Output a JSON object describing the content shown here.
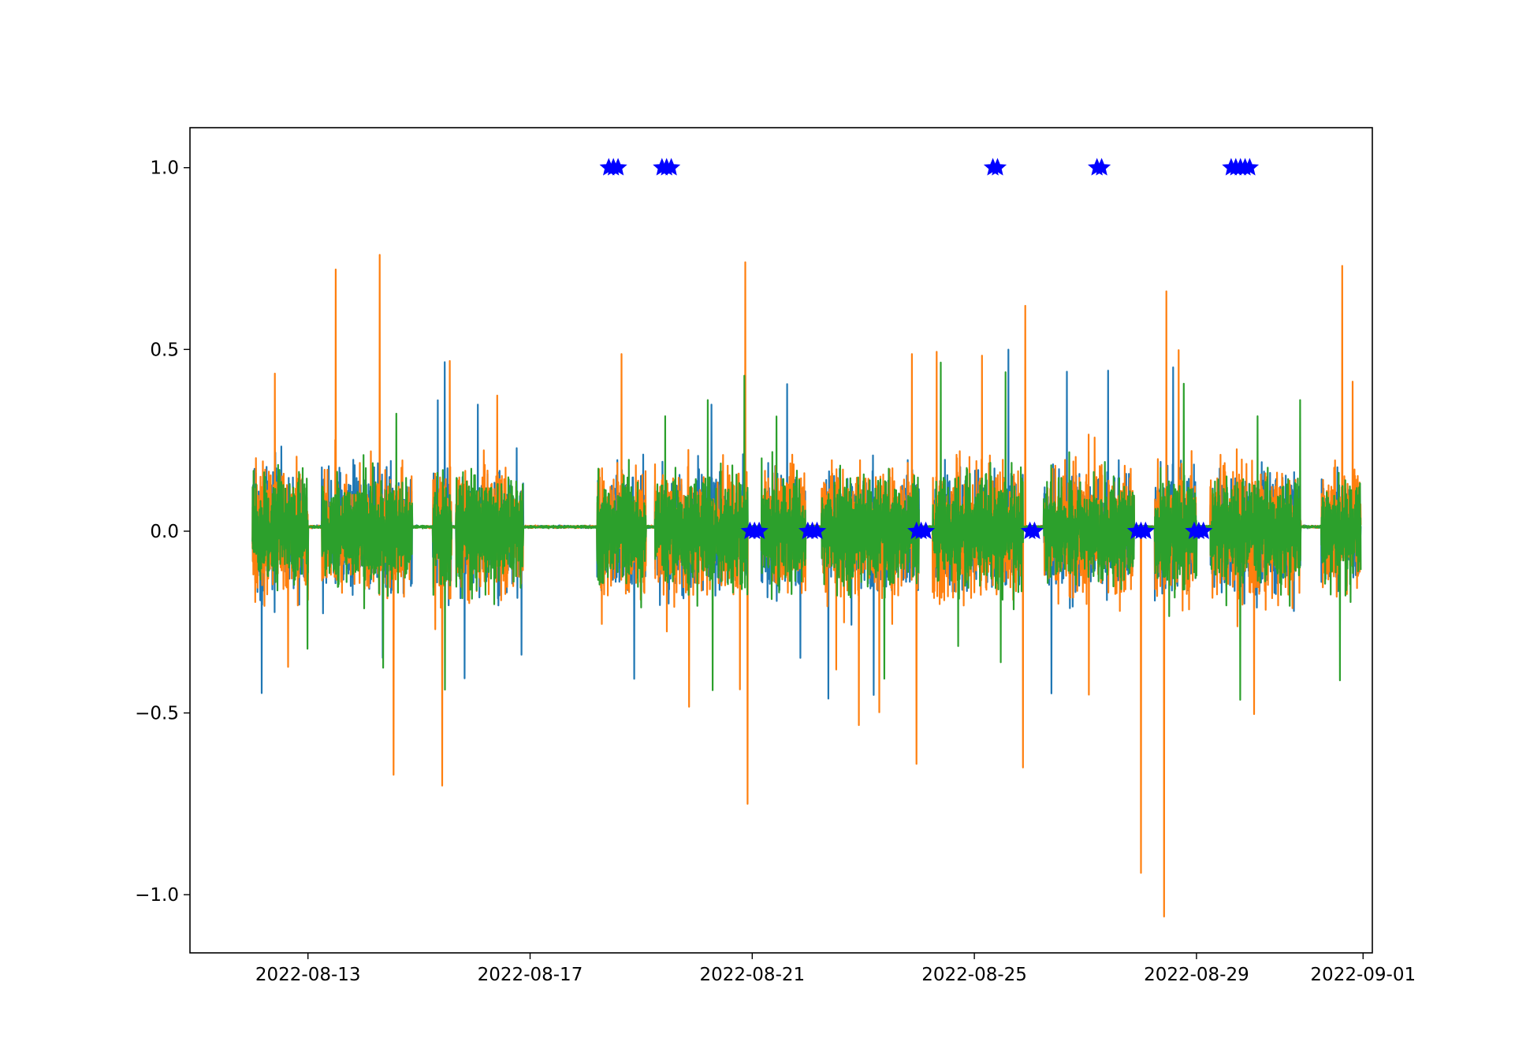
{
  "chart_data": {
    "type": "line",
    "title": "",
    "xlabel": "",
    "ylabel": "",
    "x_axis": {
      "kind": "date",
      "range": [
        "2022-08-10T21:00",
        "2022-09-01T04:00"
      ],
      "ticks": [
        {
          "value": "2022-08-13",
          "label": "2022-08-13"
        },
        {
          "value": "2022-08-17",
          "label": "2022-08-17"
        },
        {
          "value": "2022-08-21",
          "label": "2022-08-21"
        },
        {
          "value": "2022-08-25",
          "label": "2022-08-25"
        },
        {
          "value": "2022-08-29",
          "label": "2022-08-29"
        },
        {
          "value": "2022-09-01",
          "label": "2022-09-01"
        }
      ]
    },
    "y_axis": {
      "range": [
        -1.16,
        1.11
      ],
      "ticks": [
        {
          "value": 1.0,
          "label": "1.0"
        },
        {
          "value": 0.5,
          "label": "0.5"
        },
        {
          "value": 0.0,
          "label": "0.0"
        },
        {
          "value": -0.5,
          "label": "−0.5"
        },
        {
          "value": -1.0,
          "label": "−1.0"
        }
      ]
    },
    "grid": false,
    "legend": "none",
    "data_window": [
      "2022-08-12T00:00",
      "2022-08-31T23:00"
    ],
    "active_segments": [
      [
        "2022-08-12T00:00",
        "2022-08-13T00:00"
      ],
      [
        "2022-08-13T06:00",
        "2022-08-14T06:00"
      ],
      [
        "2022-08-14T06:00",
        "2022-08-14T21:00"
      ],
      [
        "2022-08-15T06:00",
        "2022-08-15T14:00"
      ],
      [
        "2022-08-15T16:00",
        "2022-08-16T21:00"
      ],
      [
        "2022-08-18T05:00",
        "2022-08-19T02:00"
      ],
      [
        "2022-08-19T06:00",
        "2022-08-20T22:00"
      ],
      [
        "2022-08-21T04:00",
        "2022-08-21T23:00"
      ],
      [
        "2022-08-22T06:00",
        "2022-08-24T00:00"
      ],
      [
        "2022-08-24T06:00",
        "2022-08-25T21:00"
      ],
      [
        "2022-08-26T06:00",
        "2022-08-27T21:00"
      ],
      [
        "2022-08-28T06:00",
        "2022-08-29T00:00"
      ],
      [
        "2022-08-29T06:00",
        "2022-08-30T21:00"
      ],
      [
        "2022-08-31T06:00",
        "2022-08-31T23:00"
      ]
    ],
    "series": [
      {
        "color": "#1f77b4",
        "style": "line",
        "typical_amplitude": 0.28,
        "baseline": 0.0
      },
      {
        "color": "#ff7f0e",
        "style": "line",
        "typical_amplitude": 0.3,
        "baseline": 0.0,
        "spikes": [
          {
            "x": "2022-08-13T12:00",
            "y": 0.72
          },
          {
            "x": "2022-08-14T07:00",
            "y": 0.76
          },
          {
            "x": "2022-08-14T13:00",
            "y": -0.67
          },
          {
            "x": "2022-08-15T10:00",
            "y": -0.7
          },
          {
            "x": "2022-08-15T10:00",
            "y": 0.68
          },
          {
            "x": "2022-08-20T21:00",
            "y": 0.74
          },
          {
            "x": "2022-08-20T22:00",
            "y": -0.75
          },
          {
            "x": "2022-08-23T23:00",
            "y": -0.64
          },
          {
            "x": "2022-08-25T21:00",
            "y": -0.65
          },
          {
            "x": "2022-08-25T22:00",
            "y": 0.62
          },
          {
            "x": "2022-08-28T00:00",
            "y": -0.94
          },
          {
            "x": "2022-08-28T10:00",
            "y": -1.06
          },
          {
            "x": "2022-08-28T11:00",
            "y": 0.66
          },
          {
            "x": "2022-08-31T15:00",
            "y": 0.73
          }
        ]
      },
      {
        "color": "#2ca02c",
        "style": "line",
        "typical_amplitude": 0.26,
        "baseline": 0.0
      },
      {
        "color": "#0000ff",
        "style": "markers",
        "marker": "star",
        "points": [
          {
            "x": "2022-08-18T10:00",
            "y": 1.0
          },
          {
            "x": "2022-08-18T12:00",
            "y": 1.0
          },
          {
            "x": "2022-08-18T14:00",
            "y": 1.0
          },
          {
            "x": "2022-08-19T09:00",
            "y": 1.0
          },
          {
            "x": "2022-08-19T11:00",
            "y": 1.0
          },
          {
            "x": "2022-08-19T13:00",
            "y": 1.0
          },
          {
            "x": "2022-08-25T08:00",
            "y": 1.0
          },
          {
            "x": "2022-08-25T10:00",
            "y": 1.0
          },
          {
            "x": "2022-08-27T05:00",
            "y": 1.0
          },
          {
            "x": "2022-08-27T07:00",
            "y": 1.0
          },
          {
            "x": "2022-08-29T15:00",
            "y": 1.0
          },
          {
            "x": "2022-08-29T17:00",
            "y": 1.0
          },
          {
            "x": "2022-08-29T19:00",
            "y": 1.0
          },
          {
            "x": "2022-08-29T21:00",
            "y": 1.0
          },
          {
            "x": "2022-08-29T23:00",
            "y": 1.0
          },
          {
            "x": "2022-08-20T23:00",
            "y": 0.0
          },
          {
            "x": "2022-08-21T01:00",
            "y": 0.0
          },
          {
            "x": "2022-08-21T03:00",
            "y": 0.0
          },
          {
            "x": "2022-08-22T00:00",
            "y": 0.0
          },
          {
            "x": "2022-08-22T02:00",
            "y": 0.0
          },
          {
            "x": "2022-08-22T04:00",
            "y": 0.0
          },
          {
            "x": "2022-08-23T23:00",
            "y": 0.0
          },
          {
            "x": "2022-08-24T01:00",
            "y": 0.0
          },
          {
            "x": "2022-08-24T03:00",
            "y": 0.0
          },
          {
            "x": "2022-08-26T00:00",
            "y": 0.0
          },
          {
            "x": "2022-08-26T02:00",
            "y": 0.0
          },
          {
            "x": "2022-08-27T22:00",
            "y": 0.0
          },
          {
            "x": "2022-08-28T00:00",
            "y": 0.0
          },
          {
            "x": "2022-08-28T02:00",
            "y": 0.0
          },
          {
            "x": "2022-08-28T23:00",
            "y": 0.0
          },
          {
            "x": "2022-08-29T01:00",
            "y": 0.0
          },
          {
            "x": "2022-08-29T03:00",
            "y": 0.0
          }
        ]
      }
    ]
  }
}
